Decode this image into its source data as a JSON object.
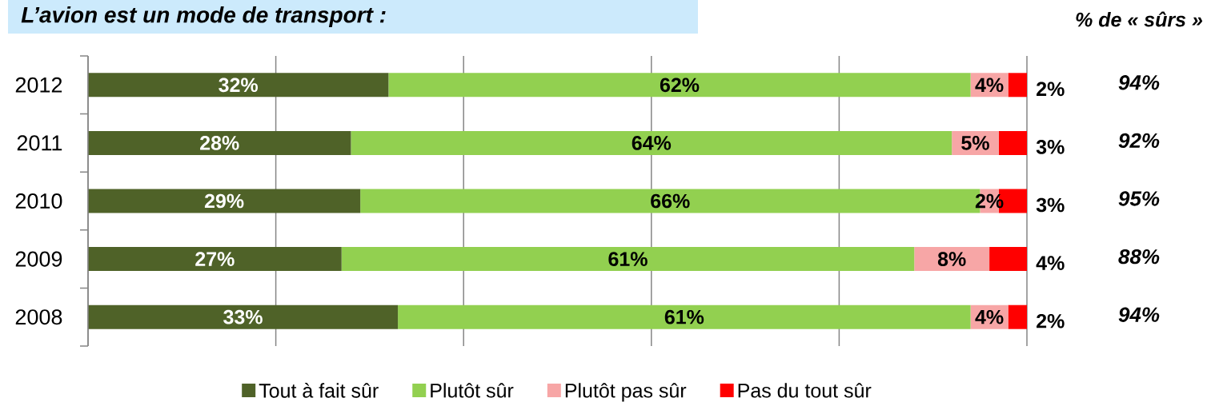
{
  "chart_data": {
    "type": "bar",
    "orientation": "horizontal",
    "stacked": true,
    "title": "L’avion est un mode de transport :",
    "categories": [
      "2012",
      "2011",
      "2010",
      "2009",
      "2008"
    ],
    "series": [
      {
        "name": "Tout à fait sûr",
        "color": "#4f6228",
        "values": [
          32,
          28,
          29,
          27,
          33
        ],
        "value_labels": [
          "32%",
          "28%",
          "29%",
          "27%",
          "33%"
        ]
      },
      {
        "name": "Plutôt sûr",
        "color": "#92d050",
        "values": [
          62,
          64,
          66,
          61,
          61
        ],
        "value_labels": [
          "62%",
          "64%",
          "66%",
          "61%",
          "61%"
        ]
      },
      {
        "name": "Plutôt pas sûr",
        "color": "#f7a6a6",
        "values": [
          4,
          5,
          2,
          8,
          4
        ],
        "value_labels": [
          "4%",
          "5%",
          "2%",
          "8%",
          "4%"
        ]
      },
      {
        "name": "Pas du tout sûr",
        "color": "#ff0000",
        "values": [
          2,
          3,
          3,
          4,
          2
        ],
        "value_labels": [
          "2%",
          "3%",
          "3%",
          "4%",
          "2%"
        ]
      }
    ],
    "xlim": [
      0,
      100
    ],
    "xticks": [
      {
        "value": 0,
        "label": null
      },
      {
        "value": 20,
        "label": null
      },
      {
        "value": 40,
        "label": null
      },
      {
        "value": 60,
        "label": null
      },
      {
        "value": 80,
        "label": null
      },
      {
        "value": 100,
        "label": null
      }
    ],
    "grid": "x",
    "legend": "bottom",
    "tick_labels": "y",
    "annotations": [
      "% de « sûrs »",
      "94%",
      "92%",
      "95%",
      "88%",
      "94%"
    ]
  }
}
